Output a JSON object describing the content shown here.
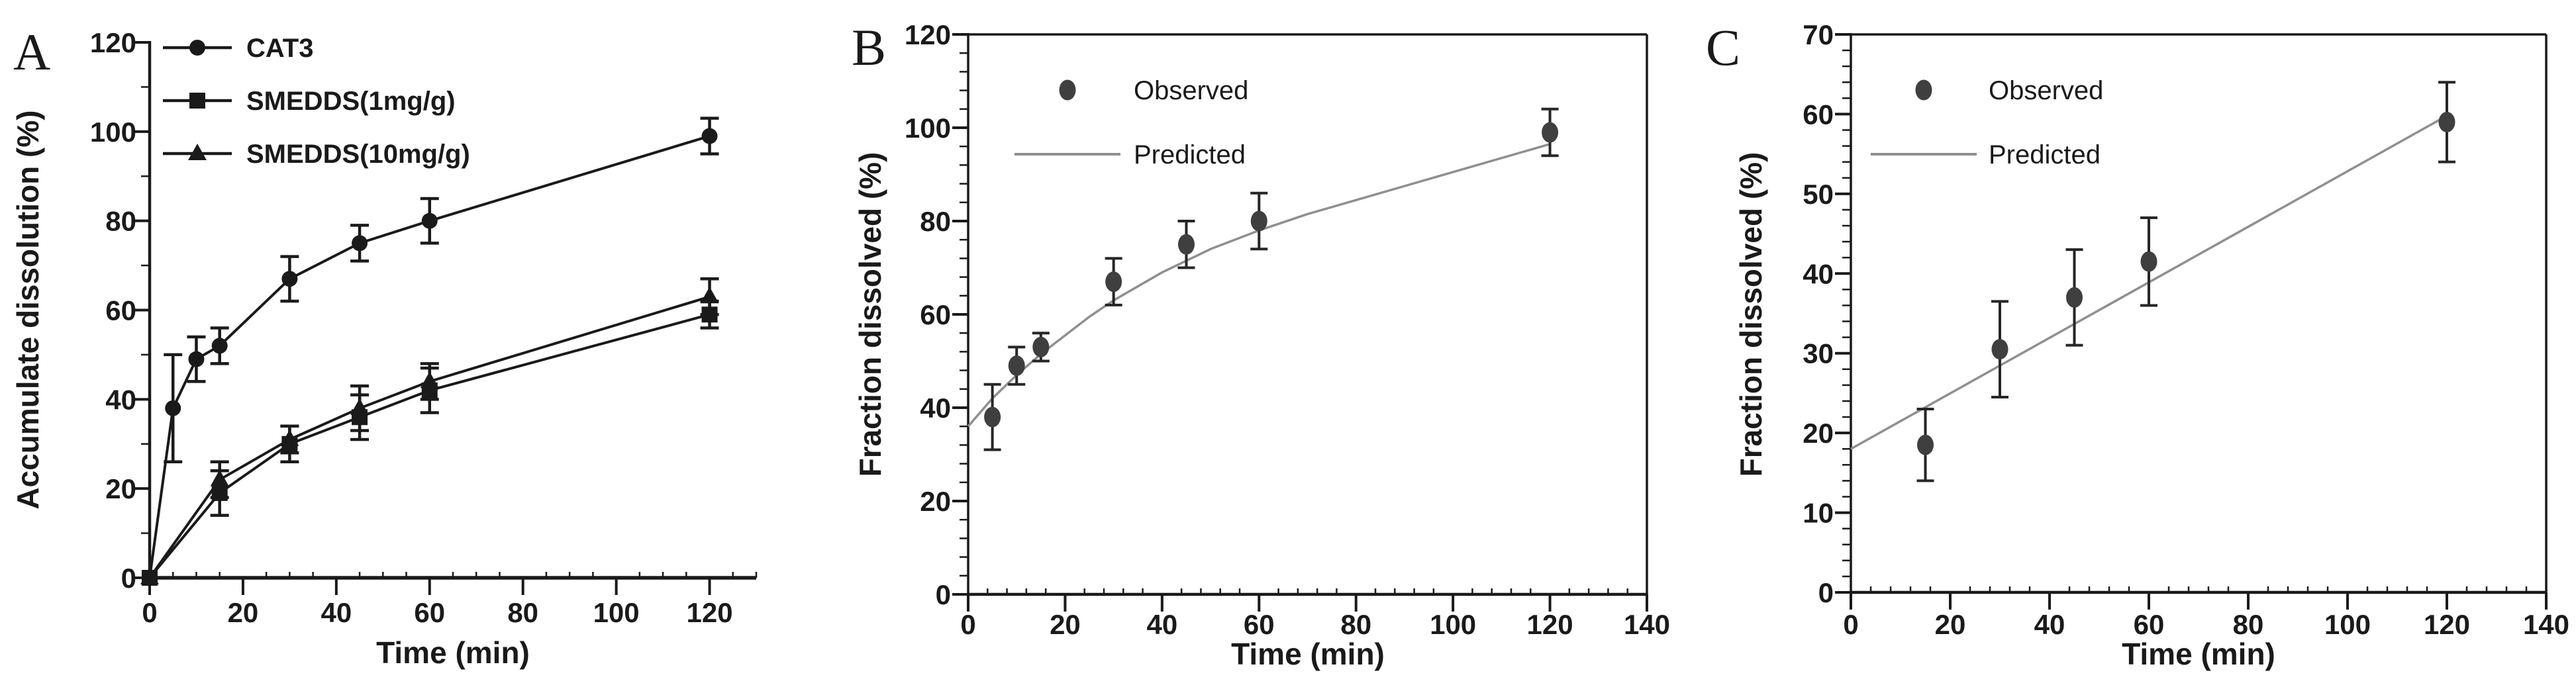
{
  "figure": {
    "background": "#ffffff",
    "text_color": "#1a1a1a"
  },
  "chart_data": [
    {
      "id": "panel-a",
      "panel_letter": "A",
      "type": "line",
      "title": "",
      "xlabel": "Time (min)",
      "ylabel": "Accumulate dissolution (%)",
      "xlim": [
        0,
        130
      ],
      "ylim": [
        0,
        120
      ],
      "x_ticks": [
        0,
        20,
        40,
        60,
        80,
        100,
        120
      ],
      "y_ticks": [
        0,
        20,
        40,
        60,
        80,
        100,
        120
      ],
      "x_minor_step": 5,
      "y_minor_step": 10,
      "frame": "axes-only",
      "grid": false,
      "legend_position": "top-left-inside",
      "series": [
        {
          "name": "CAT3",
          "marker": "circle",
          "legend_glyph": "line+marker",
          "color": "#1a1a1a",
          "line_color": "#1a1a1a",
          "x": [
            0,
            5,
            10,
            15,
            30,
            45,
            60,
            120
          ],
          "y": [
            0,
            38,
            49,
            52,
            67,
            75,
            80,
            99
          ],
          "yerr": [
            0,
            12,
            5,
            4,
            5,
            4,
            5,
            4
          ]
        },
        {
          "name": "SMEDDS(1mg/g)",
          "marker": "square",
          "legend_glyph": "line+marker",
          "color": "#1a1a1a",
          "line_color": "#1a1a1a",
          "x": [
            0,
            15,
            30,
            45,
            60,
            120
          ],
          "y": [
            0,
            19,
            30,
            36,
            42,
            59
          ],
          "yerr": [
            0,
            5,
            4,
            5,
            5,
            3
          ]
        },
        {
          "name": "SMEDDS(10mg/g)",
          "marker": "triangle",
          "legend_glyph": "line+marker",
          "color": "#1a1a1a",
          "line_color": "#1a1a1a",
          "x": [
            0,
            15,
            30,
            45,
            60,
            120
          ],
          "y": [
            0,
            22,
            31,
            38,
            44,
            63
          ],
          "yerr": [
            0,
            4,
            3,
            5,
            4,
            4
          ]
        }
      ]
    },
    {
      "id": "panel-b",
      "panel_letter": "B",
      "type": "line",
      "title": "",
      "xlabel": "Time (min)",
      "ylabel": "Fraction dissolved (%)",
      "xlim": [
        0,
        140
      ],
      "ylim": [
        0,
        120
      ],
      "x_ticks": [
        0,
        20,
        40,
        60,
        80,
        100,
        120,
        140
      ],
      "y_ticks": [
        0,
        20,
        40,
        60,
        80,
        100,
        120
      ],
      "x_minor_step": 4,
      "y_minor_step": 4,
      "frame": "box",
      "grid": false,
      "legend_position": "top-left-inside",
      "series": [
        {
          "name": "Predicted",
          "marker": "none",
          "legend_glyph": "line",
          "color": "#8f8f8f",
          "line_color": "#8f8f8f",
          "x": [
            0,
            5,
            10,
            15,
            20,
            25,
            30,
            35,
            40,
            45,
            50,
            55,
            60,
            70,
            80,
            90,
            100,
            110,
            120
          ],
          "y": [
            36,
            42,
            47,
            51.5,
            55.5,
            59.5,
            63,
            66,
            69,
            71.5,
            74,
            76,
            78,
            81.5,
            84.5,
            87.5,
            90.5,
            93.5,
            96.5
          ],
          "yerr": [
            0,
            0,
            0,
            0,
            0,
            0,
            0,
            0,
            0,
            0,
            0,
            0,
            0,
            0,
            0,
            0,
            0,
            0,
            0
          ]
        },
        {
          "name": "Observed",
          "marker": "oval",
          "legend_glyph": "marker",
          "color": "#3f3f3f",
          "line_color": "none",
          "x": [
            5,
            10,
            15,
            30,
            45,
            60,
            120
          ],
          "y": [
            38,
            49,
            53,
            67,
            75,
            80,
            99
          ],
          "yerr": [
            7,
            4,
            3,
            5,
            5,
            6,
            5
          ]
        }
      ],
      "legend_order": [
        "Observed",
        "Predicted"
      ]
    },
    {
      "id": "panel-c",
      "panel_letter": "C",
      "type": "line",
      "title": "",
      "xlabel": "Time (min)",
      "ylabel": "Fraction dissolved (%)",
      "xlim": [
        0,
        140
      ],
      "ylim": [
        0,
        70
      ],
      "x_ticks": [
        0,
        20,
        40,
        60,
        80,
        100,
        120,
        140
      ],
      "y_ticks": [
        0,
        10,
        20,
        30,
        40,
        50,
        60,
        70
      ],
      "x_minor_step": 4,
      "y_minor_step": 2,
      "frame": "box",
      "grid": false,
      "legend_position": "top-left-inside",
      "series": [
        {
          "name": "Predicted",
          "marker": "none",
          "legend_glyph": "line",
          "color": "#8f8f8f",
          "line_color": "#8f8f8f",
          "x": [
            0,
            120
          ],
          "y": [
            18,
            59.8
          ],
          "yerr": [
            0,
            0
          ]
        },
        {
          "name": "Observed",
          "marker": "oval",
          "legend_glyph": "marker",
          "color": "#3f3f3f",
          "line_color": "none",
          "x": [
            15,
            30,
            45,
            60,
            120
          ],
          "y": [
            18.5,
            30.5,
            37,
            41.5,
            59
          ],
          "yerr": [
            4.5,
            6,
            6,
            5.5,
            5
          ]
        }
      ],
      "legend_order": [
        "Observed",
        "Predicted"
      ]
    }
  ],
  "colors": {
    "axis": "#1a1a1a",
    "error_bar_dark": "#262626",
    "observed_marker": "#3f3f3f",
    "predicted_line": "#8f8f8f",
    "black_series": "#1a1a1a"
  }
}
